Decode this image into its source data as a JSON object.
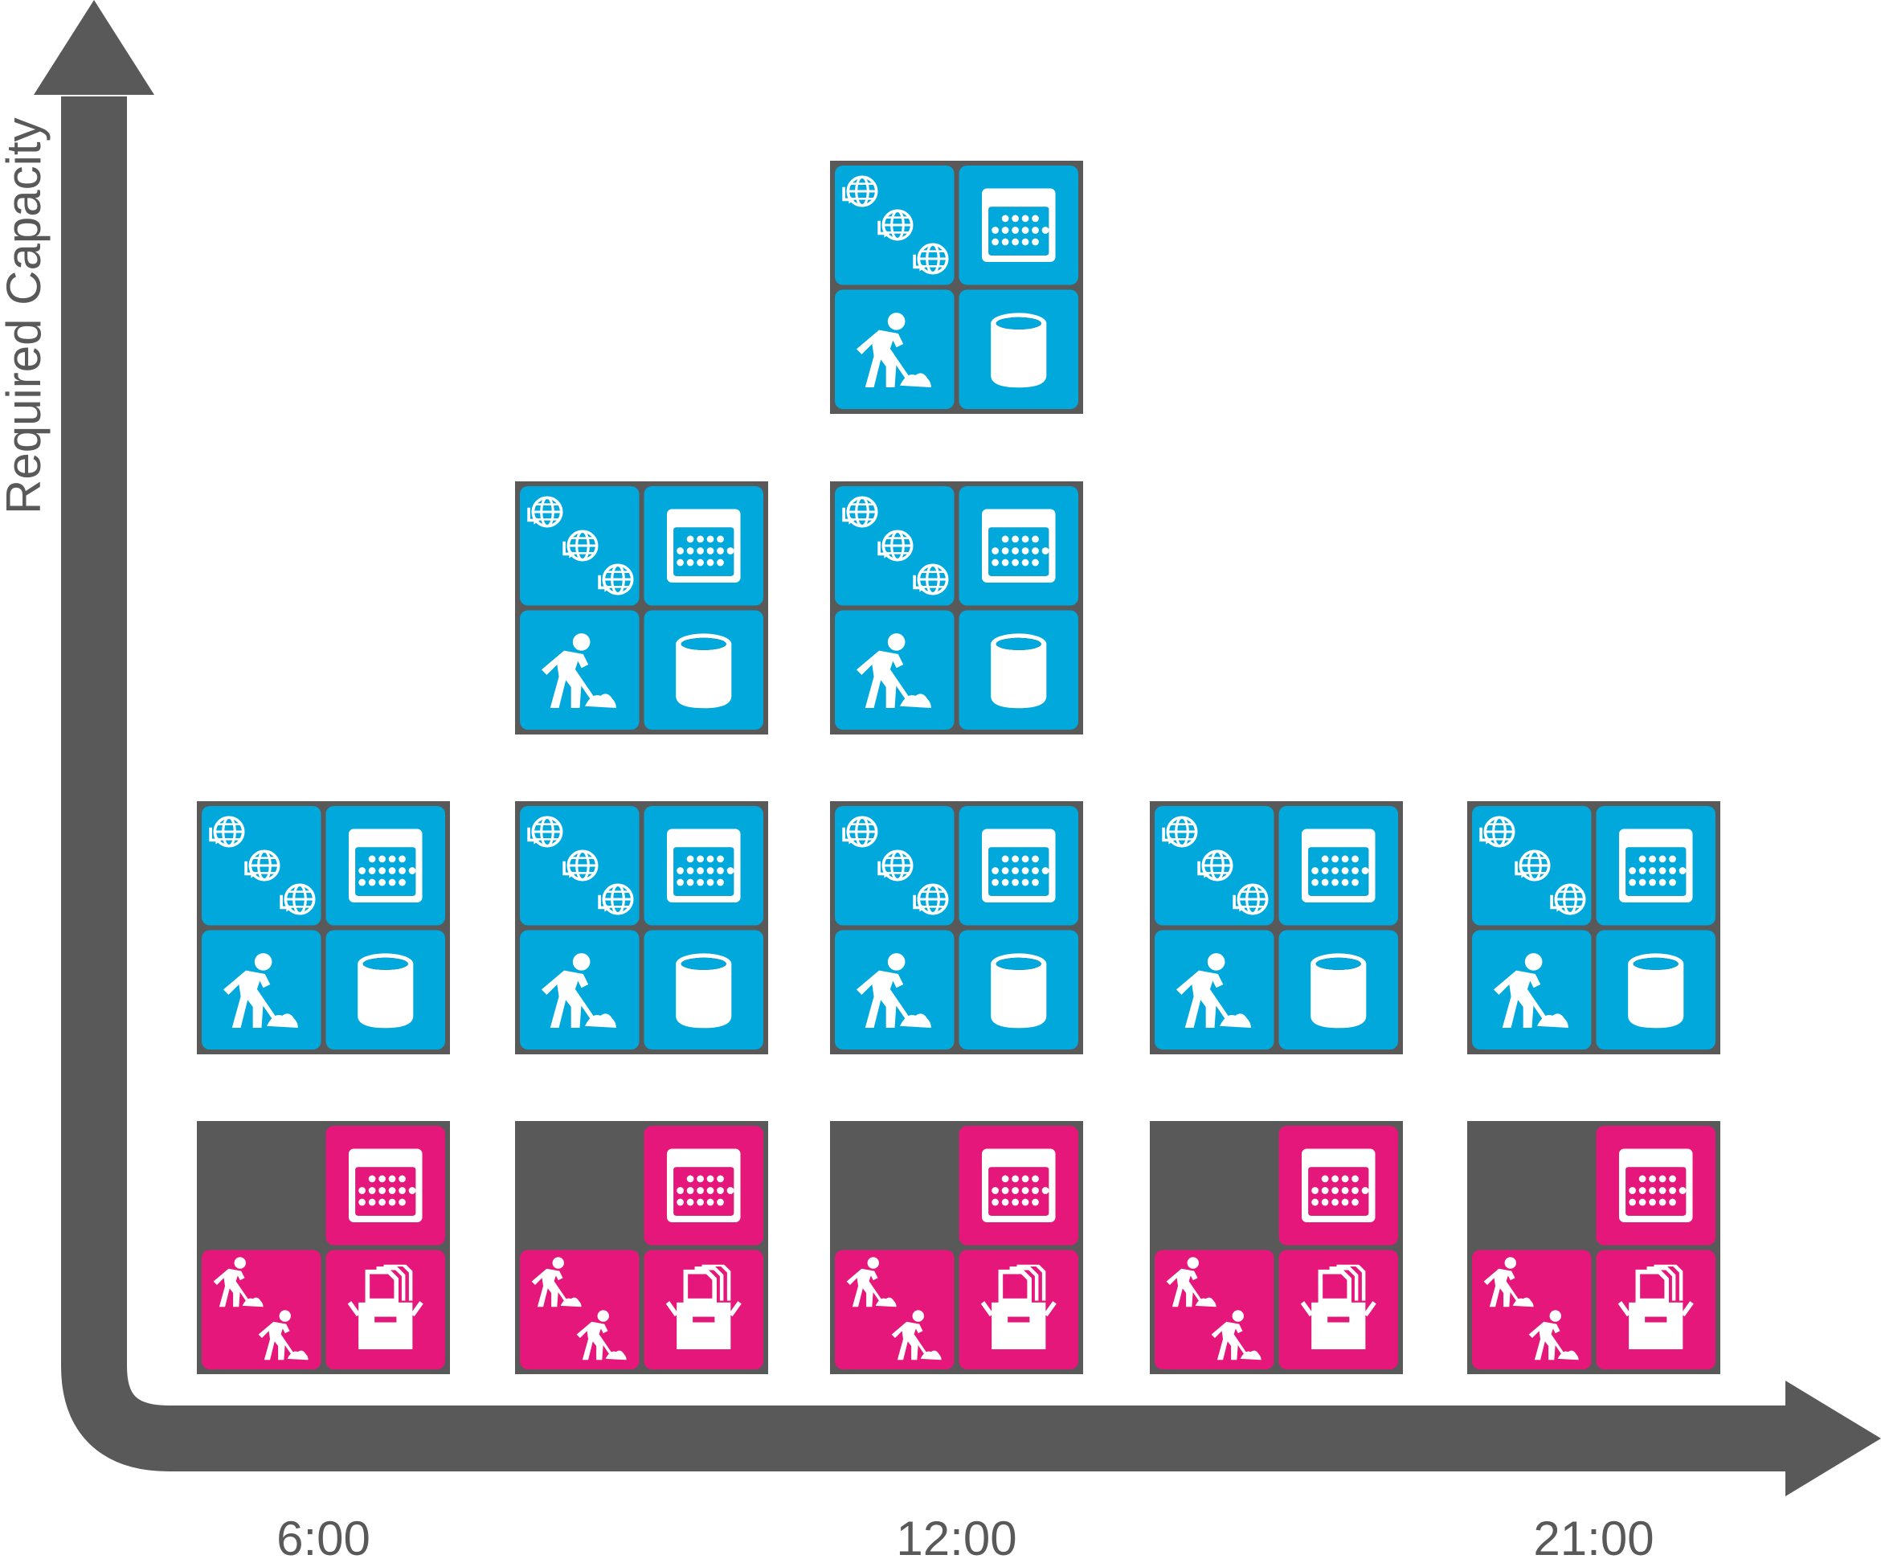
{
  "axes": {
    "y_label": "Required Capacity",
    "x_ticks": [
      "6:00",
      "12:00",
      "21:00"
    ]
  },
  "colors": {
    "axis": "#595959",
    "tile_blue": "#00a8dc",
    "tile_magenta": "#e5177b",
    "block_border": "#595959",
    "icon": "#ffffff",
    "label": "#595959"
  },
  "icon_legend": {
    "globe_chain": "globe-sync-icon",
    "calendar": "calendar-icon",
    "worker": "worker-digging-icon",
    "database": "database-cylinder-icon",
    "two_workers": "two-workers-icon",
    "box": "archive-box-icon"
  },
  "columns": [
    {
      "time_label": "6:00",
      "blocks": [
        {
          "color": "magenta",
          "tiles": [
            "empty",
            "calendar",
            "two_workers",
            "box"
          ]
        },
        {
          "color": "blue",
          "tiles": [
            "globe_chain",
            "calendar",
            "worker",
            "database"
          ]
        }
      ]
    },
    {
      "time_label": "",
      "blocks": [
        {
          "color": "magenta",
          "tiles": [
            "empty",
            "calendar",
            "two_workers",
            "box"
          ]
        },
        {
          "color": "blue",
          "tiles": [
            "globe_chain",
            "calendar",
            "worker",
            "database"
          ]
        },
        {
          "color": "blue",
          "tiles": [
            "globe_chain",
            "calendar",
            "worker",
            "database"
          ]
        }
      ]
    },
    {
      "time_label": "12:00",
      "blocks": [
        {
          "color": "magenta",
          "tiles": [
            "empty",
            "calendar",
            "two_workers",
            "box"
          ]
        },
        {
          "color": "blue",
          "tiles": [
            "globe_chain",
            "calendar",
            "worker",
            "database"
          ]
        },
        {
          "color": "blue",
          "tiles": [
            "globe_chain",
            "calendar",
            "worker",
            "database"
          ]
        },
        {
          "color": "blue",
          "tiles": [
            "globe_chain",
            "calendar",
            "worker",
            "database"
          ]
        }
      ]
    },
    {
      "time_label": "",
      "blocks": [
        {
          "color": "magenta",
          "tiles": [
            "empty",
            "calendar",
            "two_workers",
            "box"
          ]
        },
        {
          "color": "blue",
          "tiles": [
            "globe_chain",
            "calendar",
            "worker",
            "database"
          ]
        }
      ]
    },
    {
      "time_label": "21:00",
      "blocks": [
        {
          "color": "magenta",
          "tiles": [
            "empty",
            "calendar",
            "two_workers",
            "box"
          ]
        },
        {
          "color": "blue",
          "tiles": [
            "globe_chain",
            "calendar",
            "worker",
            "database"
          ]
        }
      ]
    }
  ]
}
